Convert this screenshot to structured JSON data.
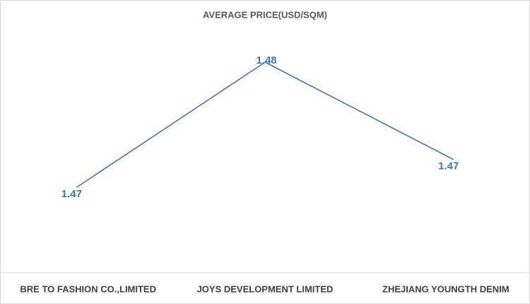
{
  "chart_data": {
    "type": "line",
    "title": "AVERAGE PRICE(USD/SQM)",
    "categories": [
      "BRE TO FASHION CO.,LIMITED",
      "JOYS DEVELOPMENT LIMITED",
      "ZHEJIANG YOUNGTH DENIM"
    ],
    "values": [
      1.466,
      1.484,
      1.47
    ],
    "value_labels": [
      "1.47",
      "1.48",
      "1.47"
    ],
    "color": "#4472c4"
  }
}
